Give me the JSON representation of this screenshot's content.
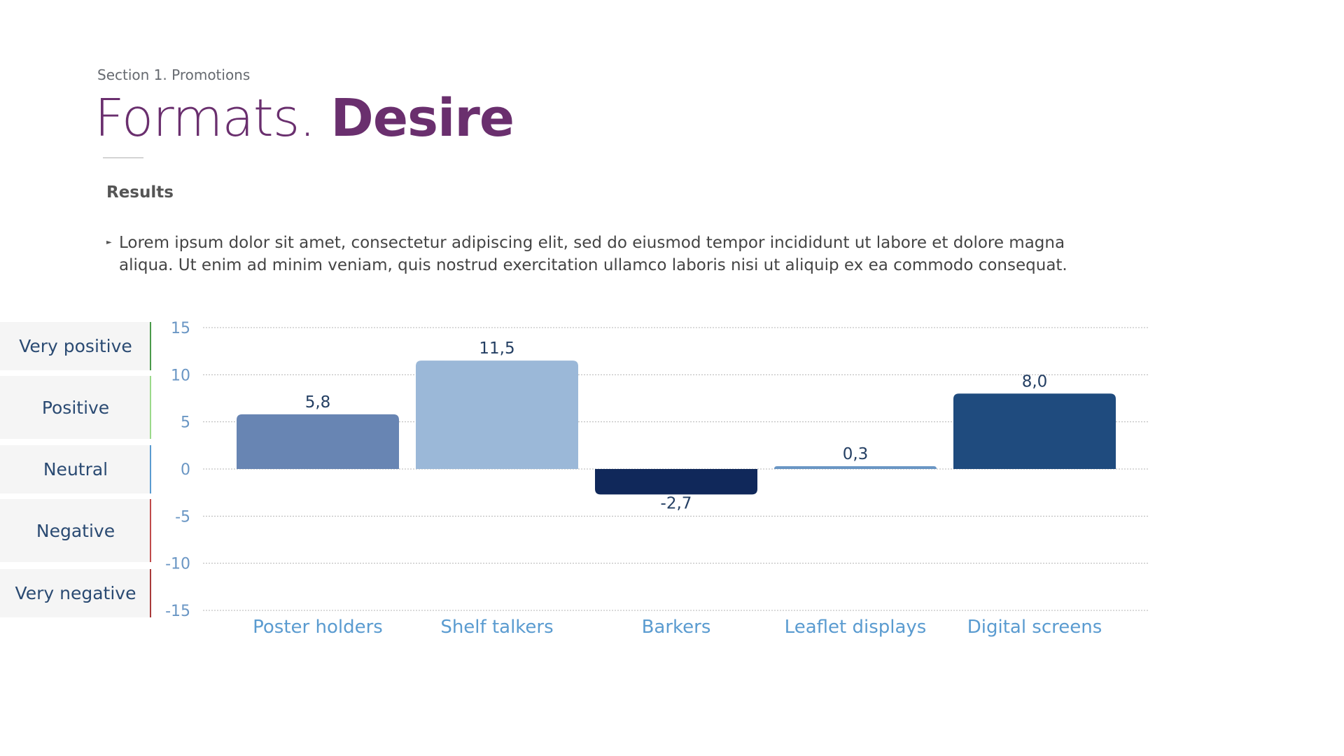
{
  "header": {
    "section": "Section 1. Promotions",
    "title_light": "Formats.",
    "title_bold": "Desire"
  },
  "results": {
    "heading": "Results",
    "bullets": [
      "Lorem ipsum dolor sit amet, consectetur adipiscing elit, sed do eiusmod tempor incididunt ut labore et dolore magna aliqua. Ut enim ad minim veniam, quis nostrud exercitation ullamco laboris nisi ut aliquip ex ea commodo consequat."
    ]
  },
  "scale": {
    "levels": [
      {
        "label": "Very positive",
        "color": "#4a9a4a"
      },
      {
        "label": "Positive",
        "color": "#9bd98a"
      },
      {
        "label": "Neutral",
        "color": "#5a9bd0"
      },
      {
        "label": "Negative",
        "color": "#c04a4a"
      },
      {
        "label": "Very negative",
        "color": "#a83a3a"
      }
    ]
  },
  "chart_data": {
    "type": "bar",
    "categories": [
      "Poster holders",
      "Shelf talkers",
      "Barkers",
      "Leaflet displays",
      "Digital screens"
    ],
    "values": [
      5.8,
      11.5,
      -2.7,
      0.3,
      8.0
    ],
    "value_labels": [
      "5,8",
      "11,5",
      "-2,7",
      "0,3",
      "8,0"
    ],
    "colors": [
      "#6885b3",
      "#9bb8d8",
      "#10285a",
      "#6a96c4",
      "#1f4b7e"
    ],
    "ylim": [
      -15,
      15
    ],
    "yticks": [
      15,
      10,
      5,
      0,
      -5,
      -10,
      -15
    ],
    "grid": true,
    "title": "",
    "xlabel": "",
    "ylabel": ""
  }
}
